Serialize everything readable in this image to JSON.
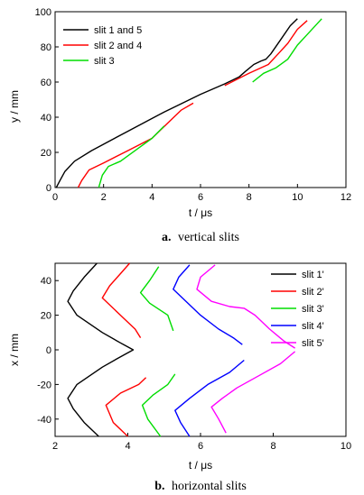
{
  "chart_data": [
    {
      "type": "line",
      "caption_letter": "a.",
      "caption_text": "vertical slits",
      "xlabel": "t / μs",
      "ylabel": "y / mm",
      "xlim": [
        0,
        12
      ],
      "ylim": [
        0,
        100
      ],
      "xticks": [
        0,
        2,
        4,
        6,
        8,
        10,
        12
      ],
      "yticks": [
        0,
        20,
        40,
        60,
        80,
        100
      ],
      "grid": false,
      "legend_position": "top-left",
      "series": [
        {
          "name": "slit 1 and 5",
          "color": "#000000",
          "segments": [
            [
              [
                0.05,
                0
              ],
              [
                0.2,
                4
              ],
              [
                0.4,
                9
              ],
              [
                0.8,
                15
              ],
              [
                1.5,
                21
              ],
              [
                3,
                32
              ],
              [
                4.5,
                43
              ],
              [
                6,
                53
              ],
              [
                7,
                59
              ],
              [
                7.6,
                63
              ],
              [
                7.85,
                66
              ],
              [
                8.2,
                70
              ],
              [
                8.5,
                72
              ],
              [
                8.7,
                73
              ],
              [
                8.9,
                76
              ],
              [
                9.3,
                84
              ],
              [
                9.7,
                92
              ],
              [
                10,
                96
              ]
            ]
          ]
        },
        {
          "name": "slit 2 and 4",
          "color": "#ff0000",
          "segments": [
            [
              [
                0.95,
                0
              ],
              [
                1.1,
                4
              ],
              [
                1.4,
                10
              ],
              [
                2,
                14
              ],
              [
                3,
                21
              ],
              [
                4,
                28
              ],
              [
                4.6,
                36
              ],
              [
                5.2,
                44
              ],
              [
                5.7,
                48
              ]
            ],
            [
              [
                7,
                58
              ],
              [
                8,
                65
              ],
              [
                8.8,
                70
              ],
              [
                9.2,
                76
              ],
              [
                9.6,
                82
              ],
              [
                10,
                90
              ],
              [
                10.4,
                95
              ]
            ]
          ]
        },
        {
          "name": "slit 3",
          "color": "#00dd00",
          "segments": [
            [
              [
                1.8,
                0
              ],
              [
                1.95,
                7
              ],
              [
                2.2,
                12
              ],
              [
                2.7,
                15
              ],
              [
                3.3,
                21
              ],
              [
                4,
                28
              ],
              [
                4.5,
                35
              ]
            ],
            [
              [
                8.15,
                60
              ],
              [
                8.6,
                65
              ],
              [
                9.1,
                68
              ],
              [
                9.6,
                73
              ],
              [
                10,
                81
              ],
              [
                10.4,
                87
              ],
              [
                11,
                96
              ]
            ]
          ]
        }
      ]
    },
    {
      "type": "line",
      "caption_letter": "b.",
      "caption_text": "horizontal slits",
      "xlabel": "t / μs",
      "ylabel": "x / mm",
      "xlim": [
        2,
        10
      ],
      "ylim": [
        -50,
        50
      ],
      "xticks": [
        2,
        4,
        6,
        8,
        10
      ],
      "yticks": [
        -40,
        -20,
        0,
        20,
        40
      ],
      "grid": false,
      "legend_position": "top-right",
      "series": [
        {
          "name": "slit 1'",
          "color": "#000000",
          "segments": [
            [
              [
                3.15,
                50
              ],
              [
                2.8,
                42
              ],
              [
                2.5,
                34
              ],
              [
                2.35,
                28
              ],
              [
                2.6,
                20
              ],
              [
                3.3,
                10
              ],
              [
                3.8,
                4
              ],
              [
                4.15,
                0
              ],
              [
                3.8,
                -4
              ],
              [
                3.3,
                -10
              ],
              [
                2.6,
                -20
              ],
              [
                2.35,
                -28
              ],
              [
                2.5,
                -34
              ],
              [
                2.8,
                -42
              ],
              [
                3.2,
                -50
              ]
            ]
          ]
        },
        {
          "name": "slit 2'",
          "color": "#ff0000",
          "segments": [
            [
              [
                4.05,
                50
              ],
              [
                3.8,
                44
              ],
              [
                3.5,
                37
              ],
              [
                3.3,
                30
              ],
              [
                3.8,
                20
              ],
              [
                4.2,
                12
              ],
              [
                4.35,
                7
              ]
            ],
            [
              [
                4.0,
                -50
              ],
              [
                3.6,
                -42
              ],
              [
                3.4,
                -32
              ],
              [
                3.8,
                -25
              ],
              [
                4.3,
                -20
              ],
              [
                4.5,
                -16
              ]
            ]
          ]
        },
        {
          "name": "slit 3'",
          "color": "#00dd00",
          "segments": [
            [
              [
                4.85,
                48
              ],
              [
                4.6,
                40
              ],
              [
                4.35,
                33
              ],
              [
                4.6,
                27
              ],
              [
                5.1,
                20
              ],
              [
                5.25,
                11
              ]
            ],
            [
              [
                4.9,
                -50
              ],
              [
                4.55,
                -40
              ],
              [
                4.4,
                -32
              ],
              [
                4.7,
                -26
              ],
              [
                5.1,
                -20
              ],
              [
                5.3,
                -14
              ]
            ]
          ]
        },
        {
          "name": "slit 4'",
          "color": "#0000ff",
          "segments": [
            [
              [
                5.7,
                49
              ],
              [
                5.4,
                42
              ],
              [
                5.25,
                35
              ],
              [
                5.6,
                28
              ],
              [
                6.0,
                20
              ],
              [
                6.5,
                12
              ],
              [
                6.9,
                7
              ],
              [
                7.15,
                3
              ]
            ],
            [
              [
                5.7,
                -50
              ],
              [
                5.45,
                -42
              ],
              [
                5.3,
                -35
              ],
              [
                5.7,
                -28
              ],
              [
                6.2,
                -20
              ],
              [
                6.8,
                -13
              ],
              [
                7.2,
                -6
              ]
            ]
          ]
        },
        {
          "name": "slit 5'",
          "color": "#ff00ff",
          "segments": [
            [
              [
                6.4,
                49
              ],
              [
                6.0,
                42
              ],
              [
                5.9,
                35
              ],
              [
                6.3,
                28
              ],
              [
                6.8,
                25
              ],
              [
                7.2,
                24
              ],
              [
                7.5,
                20
              ],
              [
                7.9,
                12
              ],
              [
                8.3,
                5
              ],
              [
                8.6,
                1
              ]
            ],
            [
              [
                8.6,
                -1
              ],
              [
                8.2,
                -8
              ],
              [
                7.6,
                -15
              ],
              [
                7.0,
                -22
              ],
              [
                6.6,
                -28
              ],
              [
                6.3,
                -33
              ],
              [
                6.5,
                -40
              ],
              [
                6.7,
                -48
              ]
            ]
          ]
        }
      ]
    }
  ]
}
